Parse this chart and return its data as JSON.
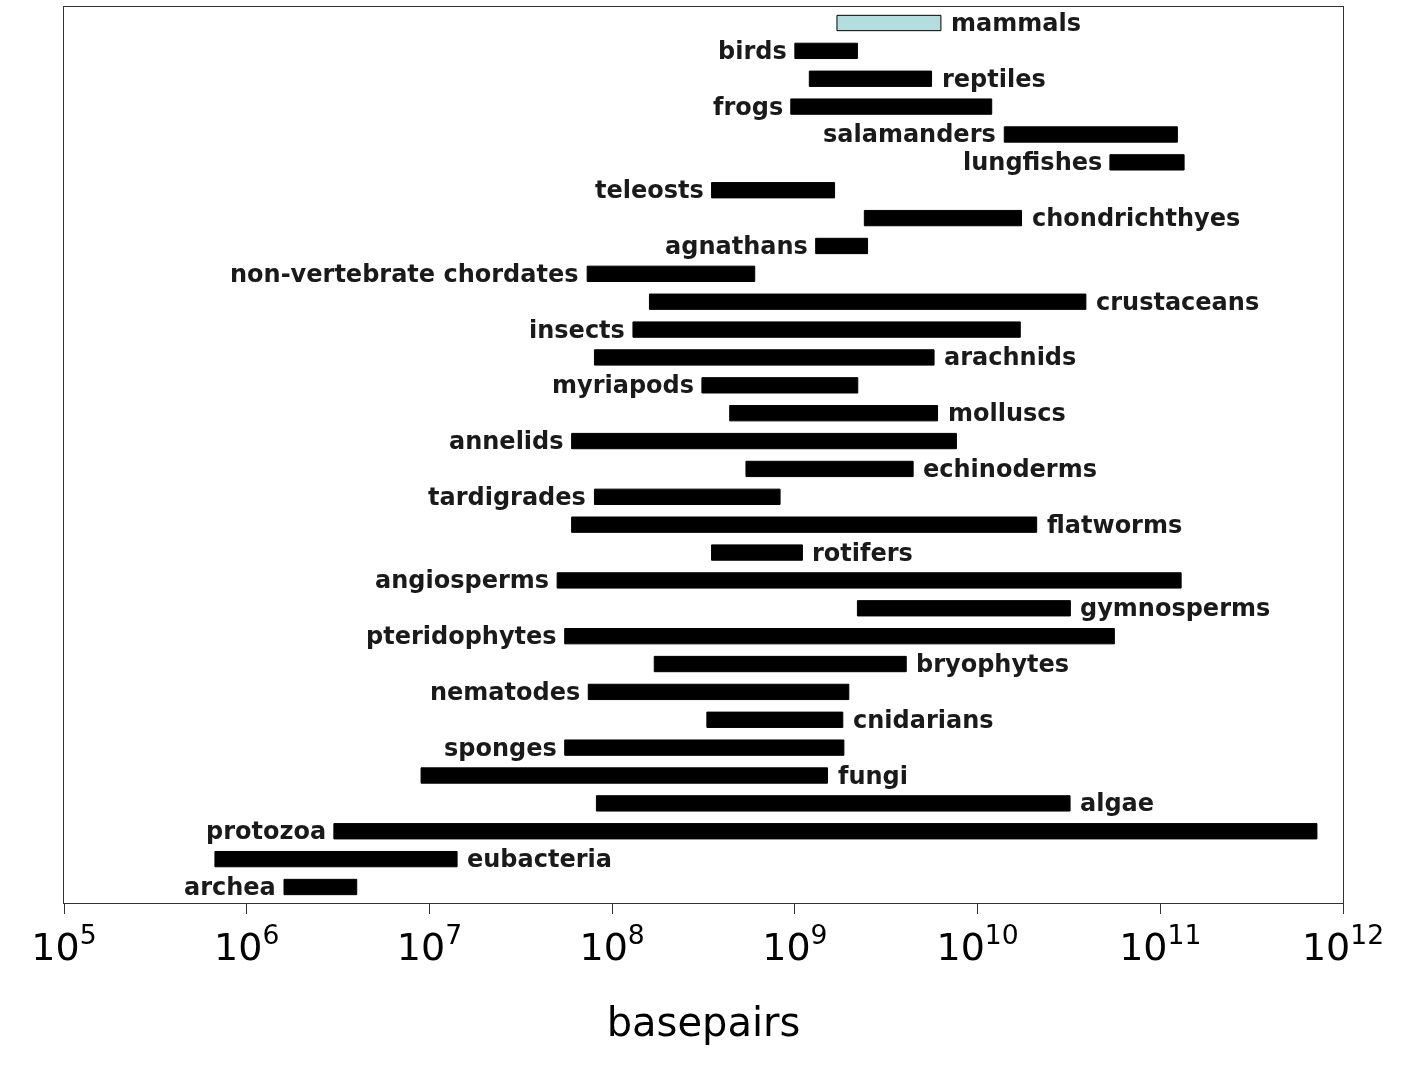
{
  "chart_data": {
    "type": "bar",
    "orientation": "horizontal",
    "xlabel": "basepairs",
    "log": "x",
    "tick_labels": "x",
    "legend": false,
    "categories": [
      "mammals",
      "birds",
      "reptiles",
      "frogs",
      "salamanders",
      "lungfishes",
      "teleosts",
      "chondrichthyes",
      "agnathans",
      "non-vertebrate chordates",
      "crustaceans",
      "insects",
      "arachnids",
      "myriapods",
      "molluscs",
      "annelids",
      "echinoderms",
      "tardigrades",
      "flatworms",
      "rotifers",
      "angiosperms",
      "gymnosperms",
      "pteridophytes",
      "bryophytes",
      "nematodes",
      "cnidarians",
      "sponges",
      "fungi",
      "algae",
      "protozoa",
      "eubacteria",
      "archea"
    ],
    "base": [
      1700000000.0,
      1000000000.0,
      1200000000.0,
      950000000.0,
      14000000000.0,
      53000000000.0,
      350000000.0,
      2400000000.0,
      1300000000.0,
      73000000.0,
      160000000.0,
      130000000.0,
      80000000.0,
      310000000.0,
      440000000.0,
      60000000.0,
      540000000.0,
      80000000.0,
      60000000.0,
      350000000.0,
      50000000.0,
      2200000000.0,
      55000000.0,
      170000000.0,
      74000000.0,
      330000000.0,
      55000000.0,
      9000000.0,
      82000000.0,
      3000000.0,
      670000.0,
      1600000.0
    ],
    "values": [
      4600000000.0,
      1200000000.0,
      4400000000.0,
      11000000000.0,
      110000000000.0,
      82000000000.0,
      1300000000.0,
      15000000000.0,
      1200000000.0,
      530000000.0,
      39000000000.0,
      17000000000.0,
      5700000000.0,
      1900000000.0,
      5600000000.0,
      7600000000.0,
      3900000000.0,
      750000000.0,
      21000000000.0,
      750000000.0,
      130000000000.0,
      30000000000.0,
      56000000000.0,
      3900000000.0,
      1900000000.0,
      1500000000.0,
      1800000000.0,
      1500000000.0,
      32000000000.0,
      720000000000.0,
      13500000.0,
      2400000.0
    ],
    "colors": [
      "#b4dde0",
      "#000000",
      "#000000",
      "#000000",
      "#000000",
      "#000000",
      "#000000",
      "#000000",
      "#000000",
      "#000000",
      "#000000",
      "#000000",
      "#000000",
      "#000000",
      "#000000",
      "#000000",
      "#000000",
      "#000000",
      "#000000",
      "#000000",
      "#000000",
      "#000000",
      "#000000",
      "#000000",
      "#000000",
      "#000000",
      "#000000",
      "#000000",
      "#000000",
      "#000000",
      "#000000",
      "#000000"
    ],
    "xlim": [
      100000.0,
      1000000000000.0
    ],
    "xticks": [
      {
        "value": 100000.0,
        "label": "10$^{5}$"
      },
      {
        "value": 1000000.0,
        "label": "10$^{6}$"
      },
      {
        "value": 10000000.0,
        "label": "10$^{7}$"
      },
      {
        "value": 100000000.0,
        "label": "10$^{8}$"
      },
      {
        "value": 1000000000.0,
        "label": "10$^{9}$"
      },
      {
        "value": 10000000000.0,
        "label": "10$^{10}$"
      },
      {
        "value": 100000000000.0,
        "label": "10$^{11}$"
      },
      {
        "value": 1000000000000.0,
        "label": "10$^{12}$"
      }
    ]
  }
}
